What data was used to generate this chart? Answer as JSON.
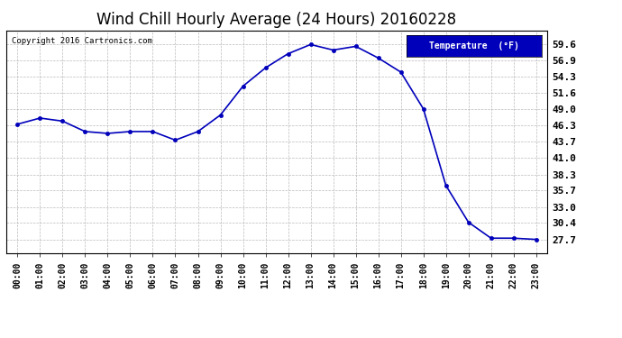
{
  "title": "Wind Chill Hourly Average (24 Hours) 20160228",
  "copyright": "Copyright 2016 Cartronics.com",
  "legend_label": "Temperature  (°F)",
  "hours": [
    "00:00",
    "01:00",
    "02:00",
    "03:00",
    "04:00",
    "05:00",
    "06:00",
    "07:00",
    "08:00",
    "09:00",
    "10:00",
    "11:00",
    "12:00",
    "13:00",
    "14:00",
    "15:00",
    "16:00",
    "17:00",
    "18:00",
    "19:00",
    "20:00",
    "21:00",
    "22:00",
    "23:00"
  ],
  "values": [
    46.5,
    47.5,
    47.0,
    45.3,
    45.0,
    45.3,
    45.3,
    43.9,
    45.3,
    48.0,
    52.7,
    55.7,
    58.0,
    59.5,
    58.6,
    59.2,
    57.3,
    55.0,
    49.0,
    36.5,
    30.5,
    27.9,
    27.9,
    27.7
  ],
  "yticks": [
    27.7,
    30.4,
    33.0,
    35.7,
    38.3,
    41.0,
    43.7,
    46.3,
    49.0,
    51.6,
    54.3,
    56.9,
    59.6
  ],
  "ylim_min": 25.4,
  "ylim_max": 61.8,
  "line_color": "#0000bb",
  "marker_color": "#0000bb",
  "bg_color": "#ffffff",
  "plot_bg_color": "#ffffff",
  "grid_color": "#aaaaaa",
  "title_fontsize": 12,
  "legend_bg": "#0000bb",
  "legend_text_color": "#ffffff"
}
